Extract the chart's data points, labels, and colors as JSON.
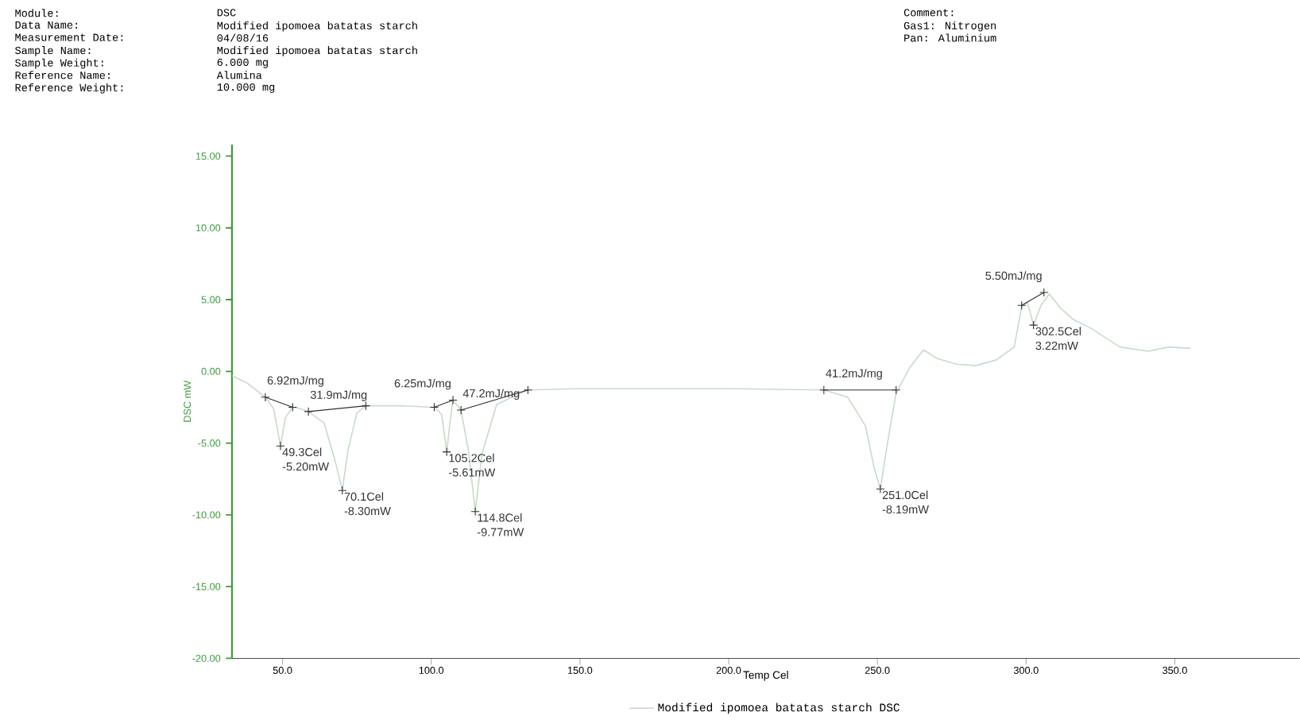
{
  "chart_data": {
    "type": "line",
    "xlabel": "Temp Cel",
    "ylabel": "DSC mW",
    "xlim": [
      33,
      392
    ],
    "ylim": [
      -20,
      15.8
    ],
    "xticks": [
      {
        "value": 50,
        "label": "50.0"
      },
      {
        "value": 100,
        "label": "100.0"
      },
      {
        "value": 150,
        "label": "150.0"
      },
      {
        "value": 200,
        "label": "200.0"
      },
      {
        "value": 250,
        "label": "250.0"
      },
      {
        "value": 300,
        "label": "300.0"
      },
      {
        "value": 350,
        "label": "350.0"
      }
    ],
    "yticks": [
      {
        "value": -20,
        "label": "-20.00"
      },
      {
        "value": -15,
        "label": "-15.00"
      },
      {
        "value": -10,
        "label": "-10.00"
      },
      {
        "value": -5,
        "label": "-5.00"
      },
      {
        "value": 0,
        "label": "0.00"
      },
      {
        "value": 5,
        "label": "5.00"
      },
      {
        "value": 10,
        "label": "10.00"
      },
      {
        "value": 15,
        "label": "15.00"
      }
    ],
    "grid": false,
    "legend": "bottom",
    "series": [
      {
        "name": "Modified ipomoea batatas starch DSC",
        "color": "#c8dcc8",
        "x": [
          33,
          38,
          44.2,
          47,
          49.3,
          51,
          53.4,
          56,
          58.7,
          64,
          68,
          70.1,
          72,
          75,
          78,
          90,
          101,
          103.5,
          105.2,
          106.5,
          107.3,
          110,
          112.5,
          114.8,
          117,
          122,
          132.5,
          150,
          200,
          232,
          240,
          246,
          249,
          251,
          253,
          256.3,
          261,
          265.5,
          270,
          276.7,
          283,
          290,
          296,
          298.5,
          300.5,
          302.5,
          305,
          307.8,
          311.6,
          316,
          321.8,
          331.5,
          341,
          348,
          355.3
        ],
        "values": [
          -0.3,
          -0.8,
          -1.8,
          -2.6,
          -5.2,
          -3.2,
          -2.5,
          -2.6,
          -2.8,
          -3.6,
          -6.5,
          -8.3,
          -5.5,
          -2.9,
          -2.4,
          -2.4,
          -2.5,
          -3,
          -5.61,
          -3.2,
          -2.0,
          -2.7,
          -5.5,
          -9.77,
          -5.8,
          -2.3,
          -1.3,
          -1.2,
          -1.2,
          -1.3,
          -1.8,
          -3.8,
          -6.8,
          -8.19,
          -5.5,
          -1.5,
          0.3,
          1.5,
          0.9,
          0.5,
          0.4,
          0.8,
          1.7,
          4.5,
          4.8,
          3.22,
          4.6,
          5.4,
          4.4,
          3.6,
          3.0,
          1.7,
          1.4,
          1.7,
          1.6
        ]
      },
      {
        "color": "#303030",
        "type": "line",
        "marker": "cross",
        "x": [
          44.2,
          53.4,
          null,
          58.7,
          78,
          null,
          101,
          107.3,
          null,
          110,
          132.5,
          null,
          232,
          256.3,
          null,
          298.5,
          306
        ],
        "values": [
          -1.8,
          -2.5,
          null,
          -2.8,
          -2.4,
          null,
          -2.5,
          -2.0,
          null,
          -2.7,
          -1.3,
          null,
          -1.3,
          -1.3,
          null,
          4.6,
          5.5
        ]
      },
      {
        "color": "#303030",
        "type": "scatter",
        "marker": "cross",
        "x": [
          49.3,
          70.1,
          105.2,
          114.8,
          251.0,
          302.5
        ],
        "values": [
          -5.2,
          -8.3,
          -5.61,
          -9.77,
          -8.19,
          3.22
        ]
      }
    ],
    "annotations": [
      "Module:",
      "DSC",
      "Data Name:",
      "Modified ipomoea batatas starch",
      "Measurement Date:",
      "04/08/16",
      "Sample Name:",
      "Modified ipomoea batatas starch",
      "Sample Weight:",
      "6.000 mg",
      "Reference Name:",
      "Alumina",
      "Reference Weight:",
      "10.000 mg",
      "Comment:",
      "Gas1: Nitrogen",
      "Pan: Aluminium",
      {
        "text": "49.3Cel -5.20mW",
        "x": 49.3,
        "y": -5.2
      },
      {
        "text": "70.1Cel -8.30mW",
        "x": 70.1,
        "y": -8.3
      },
      {
        "text": "105.2Cel -5.61mW",
        "x": 105.2,
        "y": -5.61
      },
      {
        "text": "114.8Cel -9.77mW",
        "x": 114.8,
        "y": -9.77
      },
      {
        "text": "251.0Cel -8.19mW",
        "x": 251.0,
        "y": -8.19
      },
      {
        "text": "302.5Cel 3.22mW",
        "x": 302.5,
        "y": 3.22
      },
      {
        "text": "6.92mJ/mg",
        "x": 44.2,
        "y": -1.8
      },
      {
        "text": "31.9mJ/mg",
        "x": 58.7,
        "y": -2.8
      },
      {
        "text": "6.25mJ/mg",
        "x": 107.3,
        "y": -2.0
      },
      {
        "text": "47.2mJ/mg",
        "x": 110,
        "y": -2.7
      },
      {
        "text": "41.2mJ/mg",
        "x": 232,
        "y": -1.3
      },
      {
        "text": "5.50mJ/mg",
        "x": 306,
        "y": 5.5
      }
    ]
  }
}
